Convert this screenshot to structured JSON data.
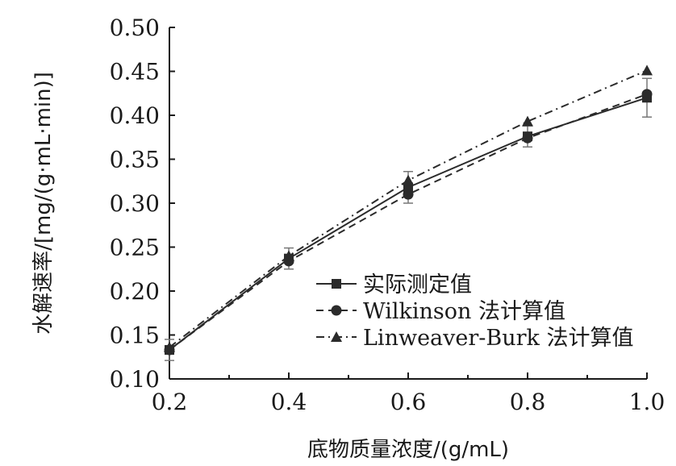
{
  "chart_data": {
    "type": "line",
    "xlabel": "底物质量浓度/(g/mL)",
    "ylabel": "水解速率/[mg/(g·mL·min)]",
    "xlim": [
      0.2,
      1.0
    ],
    "ylim": [
      0.1,
      0.5
    ],
    "x_ticks": [
      "0.2",
      "0.4",
      "0.6",
      "0.8",
      "1.0"
    ],
    "y_ticks": [
      "0.10",
      "0.15",
      "0.20",
      "0.25",
      "0.30",
      "0.35",
      "0.40",
      "0.45",
      "0.50"
    ],
    "x_tick_values": [
      0.2,
      0.4,
      0.6,
      0.8,
      1.0
    ],
    "y_tick_values": [
      0.1,
      0.15,
      0.2,
      0.25,
      0.3,
      0.35,
      0.4,
      0.45,
      0.5
    ],
    "grid": false,
    "legend_position": "lower-right",
    "x": [
      0.2,
      0.4,
      0.6,
      0.8,
      1.0
    ],
    "series": [
      {
        "name": "实际测定值",
        "marker": "square",
        "dash": "solid",
        "values": [
          0.133,
          0.237,
          0.318,
          0.376,
          0.42
        ],
        "error": [
          0.012,
          0.012,
          0.018,
          0.012,
          0.022
        ]
      },
      {
        "name": "Wilkinson 法计算值",
        "marker": "circle",
        "dash": "dashed",
        "values": [
          0.133,
          0.234,
          0.31,
          0.374,
          0.424
        ],
        "error": null
      },
      {
        "name": "Linweaver-Burk 法计算值",
        "marker": "triangle",
        "dash": "dashdot",
        "values": [
          0.136,
          0.24,
          0.326,
          0.393,
          0.451
        ],
        "error": null
      }
    ],
    "colors": {
      "line": "#2b2b2b",
      "axis": "#1a1a1a"
    }
  }
}
